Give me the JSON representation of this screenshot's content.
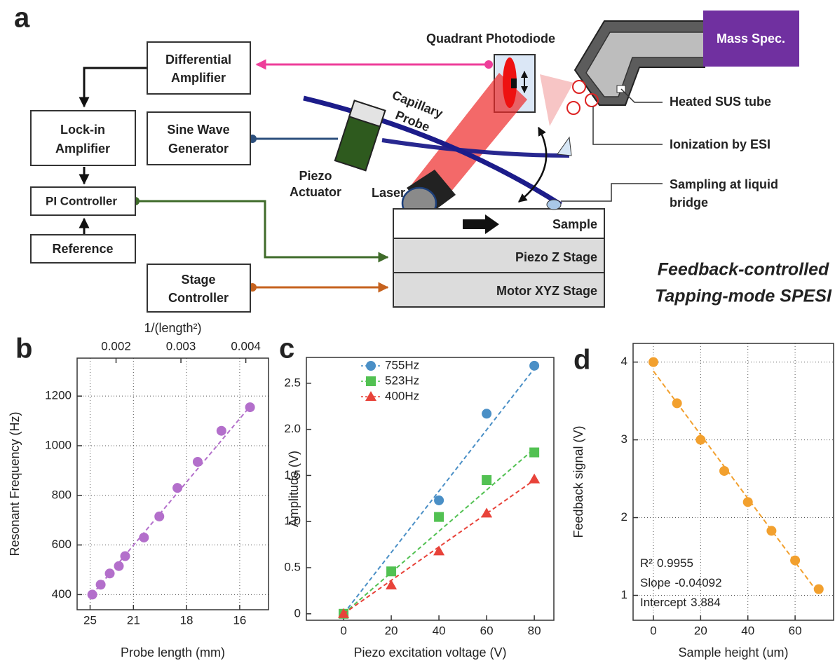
{
  "diagram": {
    "panel_label": "a",
    "boxes": [
      {
        "lines": [
          "Differential",
          "Amplifier"
        ]
      },
      {
        "lines": [
          "Lock-in",
          "Amplifier"
        ]
      },
      {
        "lines": [
          "Sine Wave",
          "Generator"
        ]
      },
      {
        "lines": [
          "PI Controller"
        ]
      },
      {
        "lines": [
          "Reference"
        ]
      },
      {
        "lines": [
          "Stage",
          "Controller"
        ]
      },
      {
        "lines": [
          "Mass Spec."
        ]
      }
    ],
    "stage": [
      "Sample",
      "Piezo Z Stage",
      "Motor XYZ Stage"
    ],
    "labels": {
      "photodiode": "Quadrant Photodiode",
      "probe": [
        "Capillary",
        "Probe"
      ],
      "actuator": [
        "Piezo",
        "Actuator"
      ],
      "laser": "Laser",
      "tube": "Heated SUS tube",
      "ionization": "Ionization by ESI",
      "sampling": [
        "Sampling at liquid",
        "bridge"
      ]
    },
    "caption": [
      "Feedback-controlled",
      "Tapping-mode SPESI"
    ]
  },
  "chart_data": [
    {
      "type": "scatter",
      "panel_label": "b",
      "xlabel": "Probe length (mm)",
      "ylabel": "Resonant Frequency (Hz)",
      "x2label": "1/(length²)",
      "xlim": [
        0.0014,
        0.00435
      ],
      "ylim": [
        339,
        1353
      ],
      "xticks": [
        {
          "value": 0.0016,
          "label": "25"
        },
        {
          "value": 0.002268,
          "label": "21"
        },
        {
          "value": 0.003086,
          "label": "18"
        },
        {
          "value": 0.003906,
          "label": "16"
        }
      ],
      "x2ticks": [
        0.002,
        0.003,
        0.004
      ],
      "yticks": [
        400,
        600,
        800,
        1000,
        1200
      ],
      "grid": true,
      "series": [
        {
          "color": "#b36fcb",
          "marker": "circle",
          "x": [
            0.001634,
            0.001763,
            0.001903,
            0.002043,
            0.00214,
            0.00243,
            0.002667,
            0.002946,
            0.003258,
            0.003624,
            0.004065
          ],
          "values": [
            400,
            440,
            485,
            515,
            555,
            630,
            715,
            830,
            935,
            1060,
            1155
          ],
          "trend": {
            "x": [
              0.00163,
              0.00407
            ],
            "values": [
              400,
              1160
            ]
          }
        }
      ]
    },
    {
      "type": "scatter",
      "panel_label": "c",
      "xlabel": "Piezo excitation voltage (V)",
      "ylabel": "Amplitude (V)",
      "xlim": [
        -15.6,
        88.2
      ],
      "ylim": [
        -0.07,
        2.78
      ],
      "xticks": [
        0,
        20,
        40,
        60,
        80
      ],
      "yticks": [
        0,
        0.5,
        {
          "value": 1,
          "label": "1.0"
        },
        1.5,
        {
          "value": 2,
          "label": "2.0"
        },
        2.5
      ],
      "grid": false,
      "legend": "upper left",
      "series": [
        {
          "name": "755Hz",
          "color": "#4a8fc6",
          "marker": "circle",
          "x": [
            0,
            40,
            60,
            80
          ],
          "values": [
            0,
            1.23,
            2.17,
            2.69
          ],
          "trend": {
            "x": [
              0,
              80
            ],
            "values": [
              0,
              2.66
            ]
          }
        },
        {
          "name": "523Hz",
          "color": "#52c152",
          "marker": "square",
          "x": [
            0,
            20,
            40,
            60,
            80
          ],
          "values": [
            0,
            0.46,
            1.05,
            1.45,
            1.75
          ],
          "trend": {
            "x": [
              0,
              80
            ],
            "values": [
              0,
              1.79
            ]
          }
        },
        {
          "name": "400Hz",
          "color": "#e8433a",
          "marker": "triangle",
          "x": [
            0,
            20,
            40,
            60,
            80
          ],
          "values": [
            0,
            0.31,
            0.68,
            1.09,
            1.46
          ],
          "trend": {
            "x": [
              0,
              80
            ],
            "values": [
              0,
              1.45
            ]
          }
        }
      ]
    },
    {
      "type": "scatter",
      "panel_label": "d",
      "xlabel": "Sample height (um)",
      "ylabel": "Feedback signal (V)",
      "xlim": [
        -8.6,
        76.3
      ],
      "ylim": [
        0.68,
        4.24
      ],
      "xticks": [
        0,
        20,
        40,
        60
      ],
      "yticks": [
        1,
        2,
        3,
        4
      ],
      "grid": true,
      "fit": {
        "r2_label": "R²",
        "r2": 0.9955,
        "slope_label": "Slope",
        "slope": -0.04092,
        "intercept_label": "Intercept",
        "intercept": 3.884
      },
      "series": [
        {
          "color": "#f2a02e",
          "marker": "circle",
          "fit_color": "#f2a02e",
          "x": [
            0,
            10,
            20,
            30,
            40,
            50,
            60,
            70
          ],
          "values": [
            4.0,
            3.47,
            3.0,
            2.6,
            2.2,
            1.83,
            1.45,
            1.08
          ]
        }
      ]
    }
  ]
}
